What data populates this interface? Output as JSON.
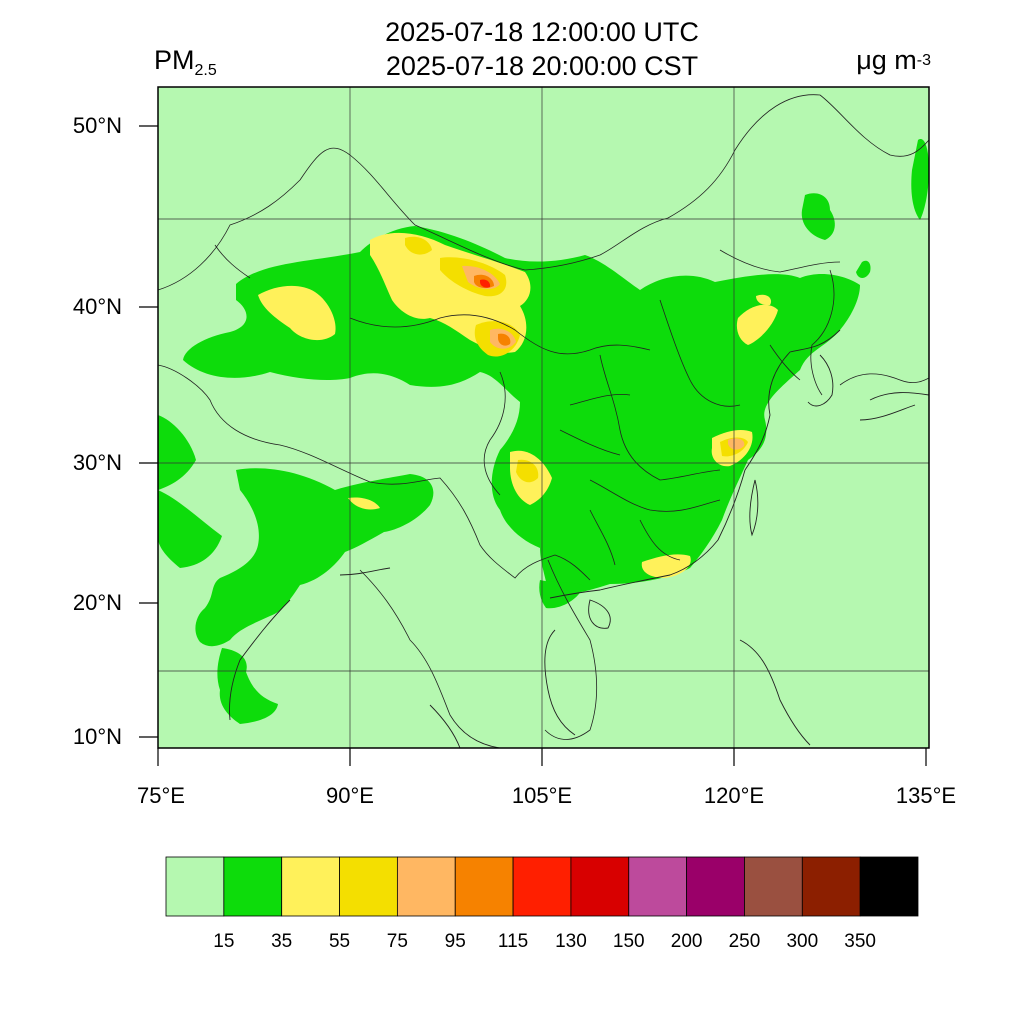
{
  "header": {
    "time_utc": "2025-07-18 12:00:00 UTC",
    "time_cst": "2025-07-18 20:00:00 CST",
    "variable_base": "PM",
    "variable_sub": "2.5",
    "unit_base": "μg m",
    "unit_sup": "-3"
  },
  "axes": {
    "latitude_ticks": [
      "50°N",
      "40°N",
      "30°N",
      "20°N",
      "10°N"
    ],
    "longitude_ticks": [
      "75°E",
      "90°E",
      "105°E",
      "120°E",
      "135°E"
    ]
  },
  "colorbar": {
    "colors": [
      "#b5f8b0",
      "#0ddc0b",
      "#fff15a",
      "#f4df00",
      "#ffb762",
      "#f68200",
      "#ff1f00",
      "#d80000",
      "#bd4a9c",
      "#9a0069",
      "#9a5040",
      "#8c1f00",
      "#000000"
    ],
    "labels": [
      "15",
      "35",
      "55",
      "75",
      "95",
      "115",
      "130",
      "150",
      "200",
      "250",
      "300",
      "350"
    ]
  }
}
